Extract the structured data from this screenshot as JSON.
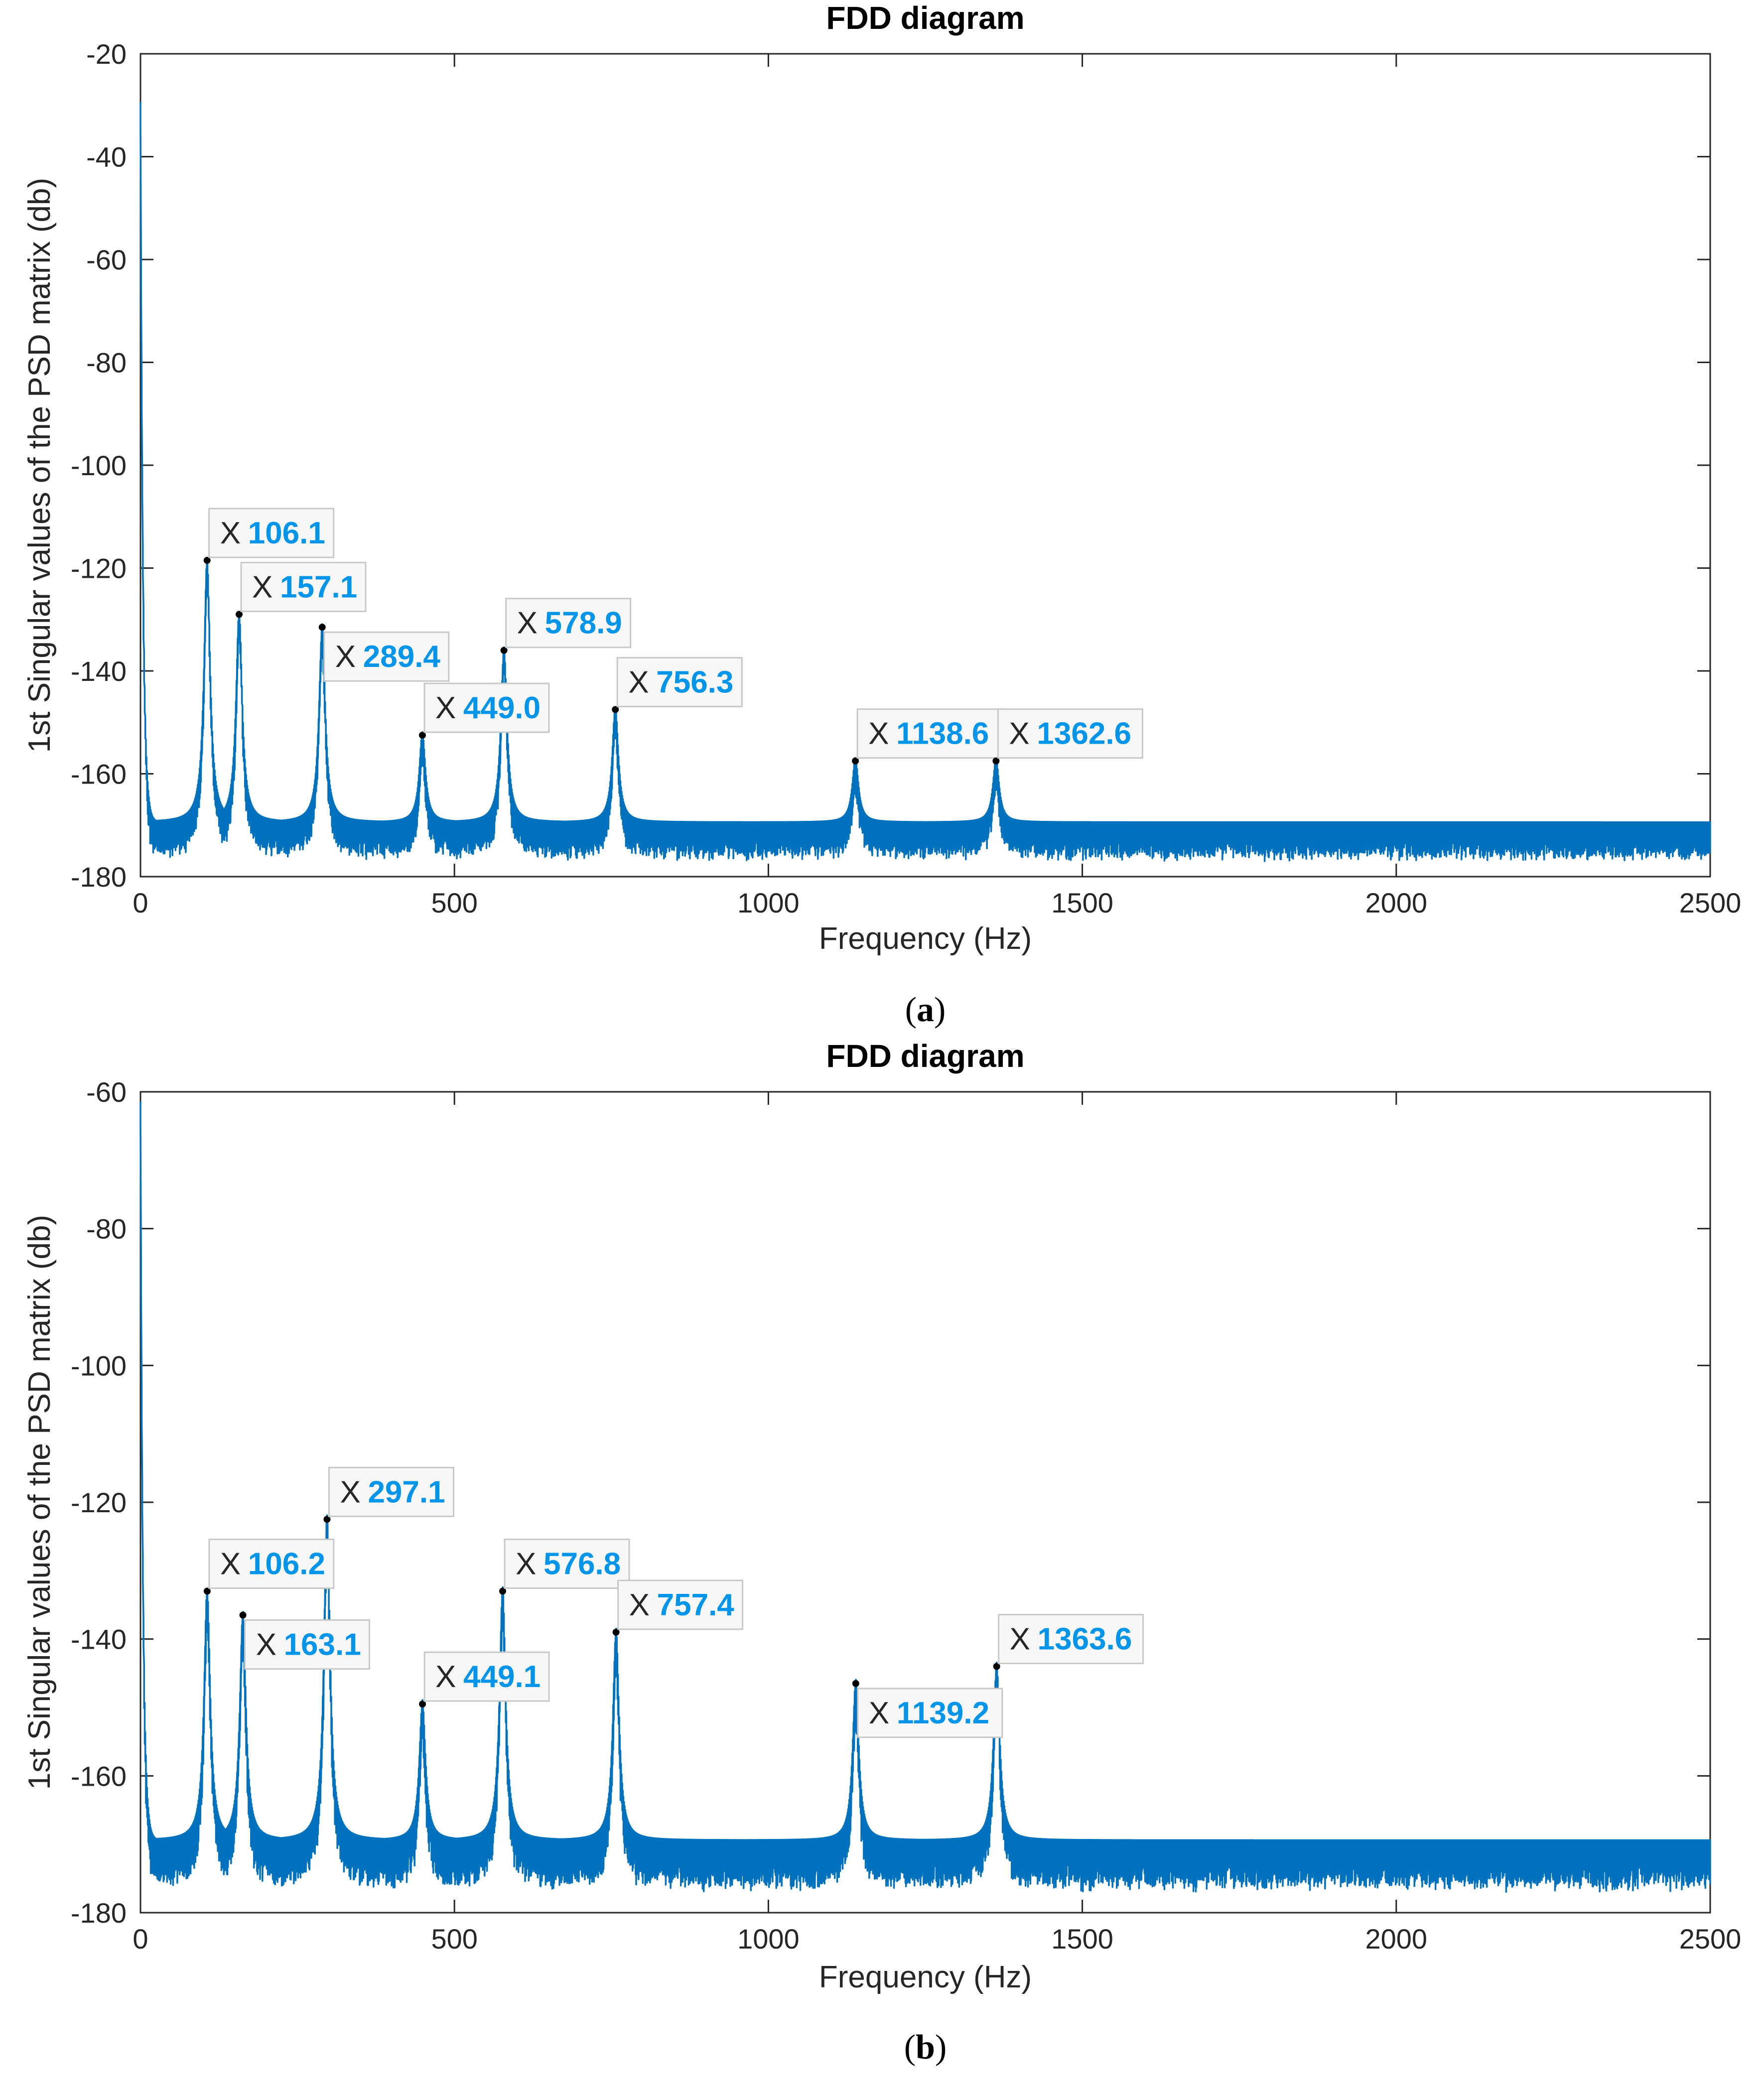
{
  "colors": {
    "series": "#0072bd",
    "datatip_value": "#0095e8",
    "axis": "#262626"
  },
  "chart_data": [
    {
      "panel": "a",
      "caption": "(a)",
      "caption_letter": "a",
      "type": "line",
      "title": "FDD diagram",
      "xlabel": "Frequency (Hz)",
      "ylabel": "1st Singular values of the PSD matrix (db)",
      "xlim": [
        0,
        2500
      ],
      "ylim": [
        -180,
        -20
      ],
      "xticks": [
        0,
        500,
        1000,
        1500,
        2000,
        2500
      ],
      "yticks": [
        -180,
        -160,
        -140,
        -120,
        -100,
        -80,
        -60,
        -40,
        -20
      ],
      "baseline_db": -170,
      "start_db": -30,
      "series": [
        {
          "name": "1st singular value",
          "peaks": [
            {
              "x": 106.1,
              "y": -118.5,
              "label": "106.1",
              "tip": "top"
            },
            {
              "x": 157.1,
              "y": -129,
              "label": "157.1",
              "tip": "top"
            },
            {
              "x": 289.4,
              "y": -131.5,
              "label": "289.4",
              "tip": "bottom"
            },
            {
              "x": 449.0,
              "y": -152.5,
              "label": "449.0",
              "tip": "top"
            },
            {
              "x": 578.9,
              "y": -136,
              "label": "578.9",
              "tip": "top"
            },
            {
              "x": 756.3,
              "y": -147.5,
              "label": "756.3",
              "tip": "top"
            },
            {
              "x": 1138.6,
              "y": -157.5,
              "label": "1138.6",
              "tip": "top"
            },
            {
              "x": 1362.6,
              "y": -157.5,
              "label": "1362.6",
              "tip": "top"
            }
          ]
        }
      ]
    },
    {
      "panel": "b",
      "caption": "(b)",
      "caption_letter": "b",
      "type": "line",
      "title": "FDD diagram",
      "xlabel": "Frequency (Hz)",
      "ylabel": "1st Singular values of the PSD matrix (db)",
      "xlim": [
        0,
        2500
      ],
      "ylim": [
        -180,
        -60
      ],
      "xticks": [
        0,
        500,
        1000,
        1500,
        2000,
        2500
      ],
      "yticks": [
        -180,
        -160,
        -140,
        -120,
        -100,
        -80,
        -60
      ],
      "baseline_db": -170,
      "start_db": -62,
      "series": [
        {
          "name": "1st singular value",
          "peaks": [
            {
              "x": 106.2,
              "y": -133,
              "label": "106.2",
              "tip": "top"
            },
            {
              "x": 163.1,
              "y": -136.5,
              "label": "163.1",
              "tip": "bottom"
            },
            {
              "x": 297.1,
              "y": -122.5,
              "label": "297.1",
              "tip": "top"
            },
            {
              "x": 449.1,
              "y": -149.5,
              "label": "449.1",
              "tip": "top"
            },
            {
              "x": 576.8,
              "y": -133,
              "label": "576.8",
              "tip": "top"
            },
            {
              "x": 757.4,
              "y": -139,
              "label": "757.4",
              "tip": "top"
            },
            {
              "x": 1139.2,
              "y": -146.5,
              "label": "1139.2",
              "tip": "bottom"
            },
            {
              "x": 1363.6,
              "y": -144,
              "label": "1363.6",
              "tip": "top"
            }
          ]
        }
      ]
    }
  ]
}
